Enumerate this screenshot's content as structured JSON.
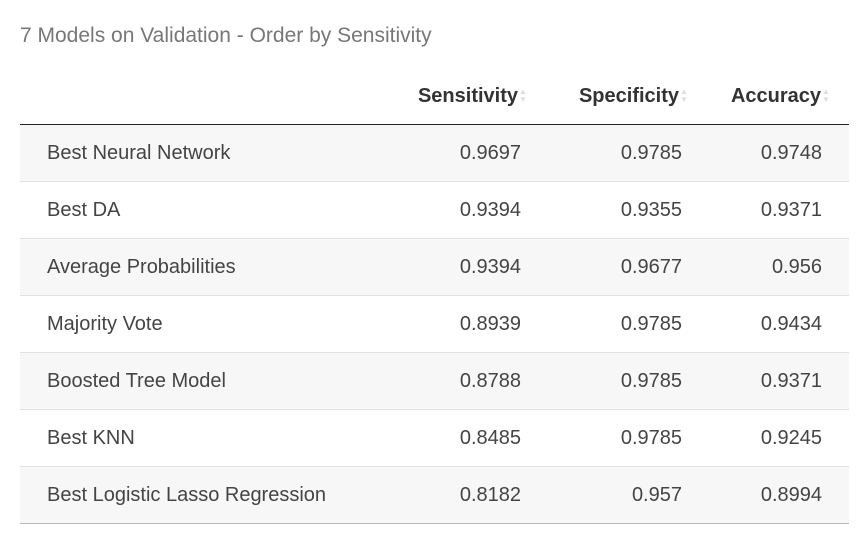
{
  "caption": "7 Models on Validation - Order by Sensitivity",
  "table": {
    "headers": {
      "model": "",
      "sensitivity": "Sensitivity",
      "specificity": "Specificity",
      "accuracy": "Accuracy"
    },
    "rows": [
      {
        "model": "Best Neural Network",
        "sensitivity": "0.9697",
        "specificity": "0.9785",
        "accuracy": "0.9748"
      },
      {
        "model": "Best DA",
        "sensitivity": "0.9394",
        "specificity": "0.9355",
        "accuracy": "0.9371"
      },
      {
        "model": "Average Probabilities",
        "sensitivity": "0.9394",
        "specificity": "0.9677",
        "accuracy": "0.956"
      },
      {
        "model": "Majority Vote",
        "sensitivity": "0.8939",
        "specificity": "0.9785",
        "accuracy": "0.9434"
      },
      {
        "model": "Boosted Tree Model",
        "sensitivity": "0.8788",
        "specificity": "0.9785",
        "accuracy": "0.9371"
      },
      {
        "model": "Best KNN",
        "sensitivity": "0.8485",
        "specificity": "0.9785",
        "accuracy": "0.9245"
      },
      {
        "model": "Best Logistic Lasso Regression",
        "sensitivity": "0.8182",
        "specificity": "0.957",
        "accuracy": "0.8994"
      }
    ]
  },
  "icons": {
    "sort": "sort-icon"
  }
}
